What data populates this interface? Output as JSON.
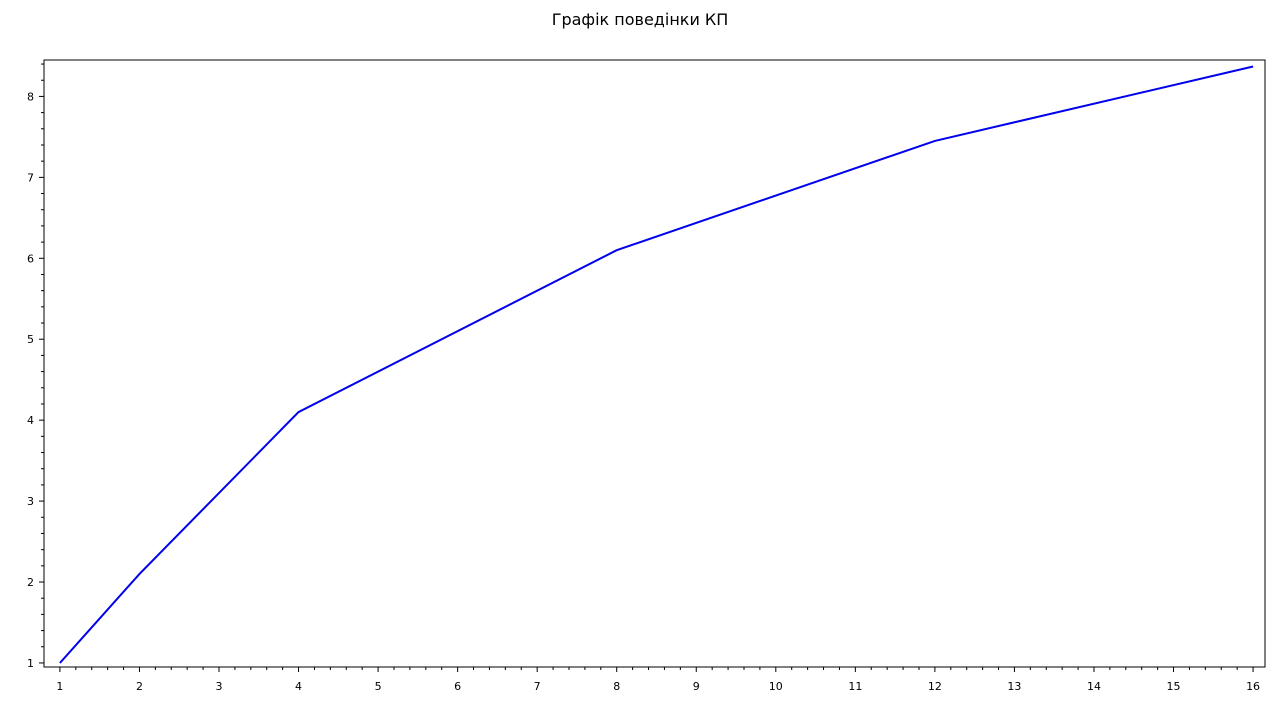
{
  "chart_data": {
    "type": "line",
    "title": "Графік поведінки КП",
    "xlabel": "",
    "ylabel": "",
    "xlim": [
      0.8,
      16.15
    ],
    "ylim": [
      0.95,
      8.45
    ],
    "x_ticks": [
      1,
      2,
      3,
      4,
      5,
      6,
      7,
      8,
      9,
      10,
      11,
      12,
      13,
      14,
      15,
      16
    ],
    "y_ticks": [
      1,
      2,
      3,
      4,
      5,
      6,
      7,
      8
    ],
    "grid": false,
    "legend": "none",
    "series": [
      {
        "color": "#0000ee",
        "x": [
          1,
          2,
          4,
          8,
          12,
          16
        ],
        "y": [
          1.0,
          2.1,
          4.1,
          6.1,
          7.45,
          8.37
        ]
      }
    ]
  }
}
